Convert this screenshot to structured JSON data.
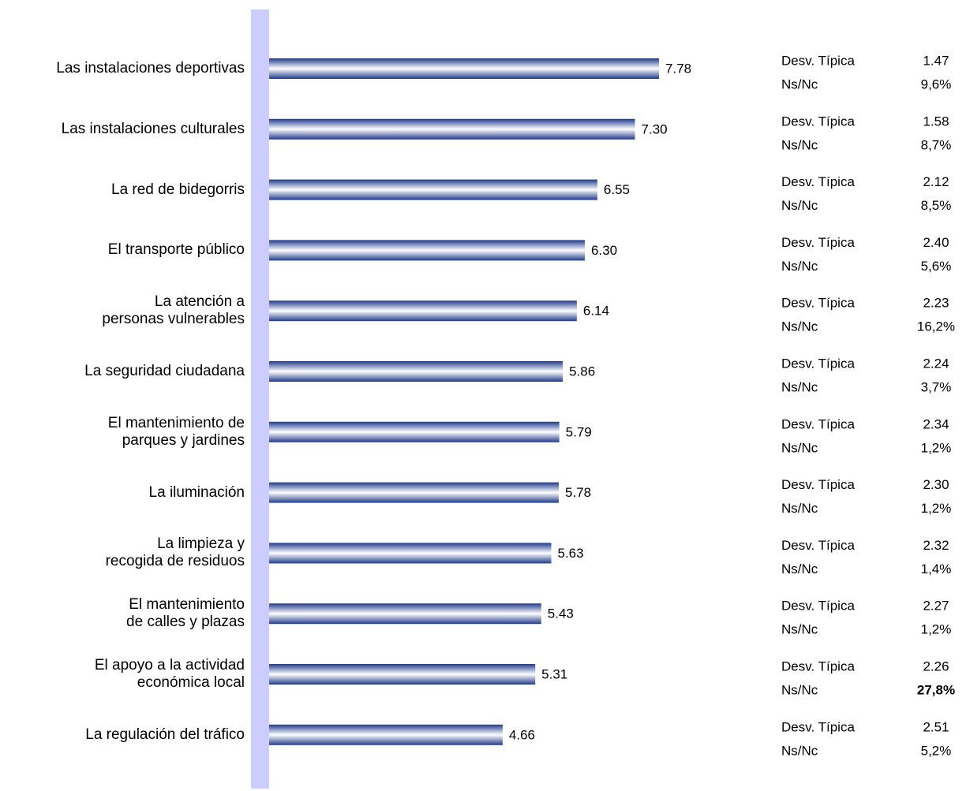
{
  "chart_data": {
    "type": "barh",
    "categories": [
      "Las instalaciones deportivas",
      "Las instalaciones culturales",
      "La red de bidegorris",
      "El transporte público",
      "La atención a\npersonas vulnerables",
      "La seguridad ciudadana",
      "El mantenimiento de\nparques y jardines",
      "La iluminación",
      "La limpieza y\nrecogida de residuos",
      "El mantenimiento\nde calles y plazas",
      "El apoyo a la actividad\neconómica local",
      "La regulación del tráfico"
    ],
    "values": [
      7.78,
      7.3,
      6.55,
      6.3,
      6.14,
      5.86,
      5.79,
      5.78,
      5.63,
      5.43,
      5.31,
      4.66
    ],
    "value_labels": [
      "7.78",
      "7.30",
      "6.55",
      "6.30",
      "6.14",
      "5.86",
      "5.79",
      "5.78",
      "5.63",
      "5.43",
      "5.31",
      "4.66"
    ],
    "color": "#1f3a8a",
    "xlim": [
      0,
      10
    ],
    "axis_color": "#ccccff",
    "std_dev_label": "Desv. Típica",
    "std_dev": [
      "1.47",
      "1.58",
      "2.12",
      "2.40",
      "2.23",
      "2.24",
      "2.34",
      "2.30",
      "2.32",
      "2.27",
      "2.26",
      "2.51"
    ],
    "nsnc_label": "Ns/Nc",
    "nsnc": [
      "9,6%",
      "8,7%",
      "8,5%",
      "5,6%",
      "16,2%",
      "3,7%",
      "1,2%",
      "1,2%",
      "1,4%",
      "1,2%",
      "27,8%",
      "5,2%"
    ],
    "nsnc_bold": [
      false,
      false,
      false,
      false,
      false,
      false,
      false,
      false,
      false,
      false,
      true,
      false
    ]
  }
}
